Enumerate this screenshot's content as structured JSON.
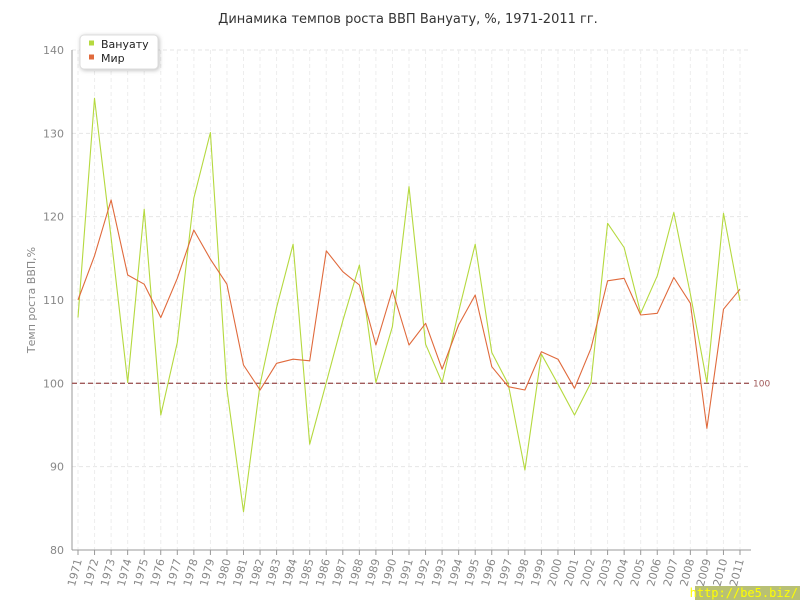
{
  "chart_data": {
    "type": "line",
    "title": "Динамика темпов роста ВВП Вануату, %, 1971-2011 гг.",
    "xlabel": "",
    "ylabel": "Темп роста ВВП,%",
    "ylim": [
      80,
      140
    ],
    "yticks": [
      80,
      90,
      100,
      110,
      120,
      130,
      140
    ],
    "grid": true,
    "legend_position": "top-left",
    "x": [
      "1971",
      "1972",
      "1973",
      "1974",
      "1975",
      "1976",
      "1977",
      "1978",
      "1979",
      "1980",
      "1981",
      "1982",
      "1983",
      "1984",
      "1985",
      "1986",
      "1987",
      "1988",
      "1989",
      "1990",
      "1991",
      "1992",
      "1993",
      "1994",
      "1995",
      "1996",
      "1997",
      "1998",
      "1999",
      "2000",
      "2001",
      "2002",
      "2003",
      "2004",
      "2005",
      "2006",
      "2007",
      "2008",
      "2009",
      "2010",
      "2011"
    ],
    "series": [
      {
        "name": "Вануату",
        "color": "#b5d93f",
        "values": [
          107.9,
          134.2,
          117.5,
          100.1,
          120.9,
          96.2,
          104.9,
          122.2,
          130.1,
          99.3,
          84.6,
          99.9,
          109.1,
          116.7,
          92.7,
          100.1,
          107.5,
          114.2,
          100.1,
          106.8,
          123.6,
          104.7,
          100.1,
          108.6,
          116.7,
          103.7,
          99.9,
          89.6,
          103.5,
          99.9,
          96.2,
          100.1,
          119.2,
          116.3,
          108.4,
          112.9,
          120.5,
          110.7,
          100.1,
          120.4,
          109.9
        ]
      },
      {
        "name": "Мир",
        "color": "#e06a3c",
        "values": [
          110.0,
          115.3,
          122.0,
          113.0,
          111.9,
          107.9,
          112.6,
          118.4,
          114.9,
          111.9,
          102.2,
          99.2,
          102.4,
          102.9,
          102.7,
          115.9,
          113.4,
          111.8,
          104.6,
          111.2,
          104.6,
          107.2,
          101.7,
          107.0,
          110.6,
          102.0,
          99.6,
          99.2,
          103.8,
          102.9,
          99.4,
          104.2,
          112.3,
          112.6,
          108.2,
          108.4,
          112.7,
          109.6,
          94.6,
          108.9,
          111.3
        ]
      }
    ],
    "reference_line": {
      "value": 100,
      "label": "100",
      "color": "#a05a5a"
    }
  },
  "watermark": "http://be5.biz/"
}
